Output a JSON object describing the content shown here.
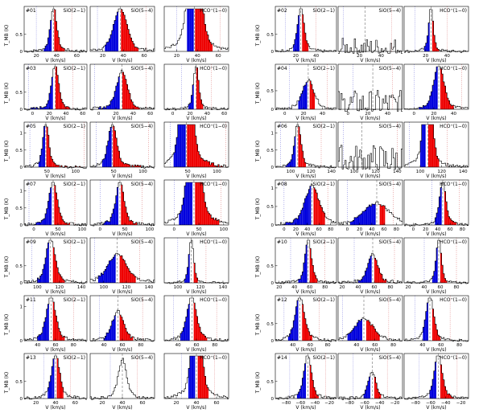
{
  "chart_data": {
    "type": "histogram-grid",
    "ylabel": "T_MB (K)",
    "xlabel": "V (km/s)",
    "lines": [
      "SiO(2−1)",
      "SiO(5−4)",
      "HCO⁺(1−0)"
    ],
    "colors": {
      "blue_wing": "#0000dd",
      "red_wing": "#ee0000",
      "outline": "#000000",
      "center_line": "#555555",
      "blue_limit": "#3333cc",
      "red_limit": "#cc3333"
    },
    "sources": [
      {
        "id": "#01",
        "x_ticks": [
          "20",
          "40",
          "60"
        ],
        "xlim": [
          8,
          70
        ],
        "center": 37,
        "y_ticks": [
          "0",
          "0.5"
        ],
        "lines": [
          {
            "label": "SiO(2−1)",
            "blue": [
              27,
              35
            ],
            "red": [
              38,
              48
            ],
            "peak": 1.0,
            "width": 3,
            "outer": [
              20,
              55
            ]
          },
          {
            "label": "SiO(5−4)",
            "blue": [
              22,
              35
            ],
            "red": [
              38,
              55
            ],
            "peak": 0.9,
            "width": 6,
            "outer": [
              15,
              62
            ]
          },
          {
            "label": "HCO⁺(1−0)",
            "blue": [
              30,
              36
            ],
            "red": [
              38,
              55
            ],
            "peak": 3.0,
            "width": 5,
            "outer": [
              20,
              62
            ]
          }
        ]
      },
      {
        "id": "#02",
        "x_ticks": [
          "20",
          "40"
        ],
        "xlim": [
          0,
          60
        ],
        "center": 25,
        "y_ticks": [
          "0",
          "0.5"
        ],
        "lines": [
          {
            "label": "SiO(2−1)",
            "blue": [
              17,
              24
            ],
            "red": [
              26,
              32
            ],
            "peak": 1.0,
            "width": 3,
            "outer": [
              10,
              40
            ]
          },
          {
            "label": "SiO(5−4)",
            "blue": null,
            "red": null,
            "peak": 0.35,
            "width": 30,
            "noise": true,
            "outer": [
              5,
              50
            ]
          },
          {
            "label": "HCO⁺(1−0)",
            "blue": [
              19,
              24
            ],
            "red": [
              26,
              33
            ],
            "peak": 1.0,
            "width": 2,
            "outer": [
              10,
              40
            ]
          }
        ]
      },
      {
        "id": "#03",
        "x_ticks": [
          "0",
          "20",
          "40",
          "60"
        ],
        "xlim": [
          -10,
          65
        ],
        "center": 27,
        "y_ticks": [
          "0",
          "0.5"
        ],
        "lines": [
          {
            "label": "SiO(2−1)",
            "blue": [
              -5,
              25
            ],
            "red": [
              28,
              45
            ],
            "peak": 1.0,
            "width": 4,
            "outer": [
              -5,
              48
            ]
          },
          {
            "label": "SiO(5−4)",
            "blue": [
              0,
              25
            ],
            "red": [
              28,
              48
            ],
            "peak": 0.8,
            "width": 6,
            "outer": [
              -5,
              55
            ]
          },
          {
            "label": "HCO⁺(1−0)",
            "blue": [
              18,
              25
            ],
            "red": [
              28,
              36
            ],
            "peak": 1.0,
            "width": 3,
            "outer": [
              10,
              45
            ]
          }
        ]
      },
      {
        "id": "#04",
        "x_ticks": [
          "0",
          "20",
          "40"
        ],
        "xlim": [
          -10,
          55
        ],
        "center": 25,
        "y_ticks": [
          "0",
          "0.5"
        ],
        "lines": [
          {
            "label": "SiO(2−1)",
            "blue": [
              15,
              24
            ],
            "red": [
              26,
              32
            ],
            "peak": 0.6,
            "width": 6,
            "outer": [
              5,
              45
            ]
          },
          {
            "label": "SiO(5−4)",
            "blue": null,
            "red": null,
            "peak": 0.5,
            "width": 30,
            "noise": true,
            "outer": [
              5,
              45
            ]
          },
          {
            "label": "HCO⁺(1−0)",
            "blue": [
              5,
              24
            ],
            "red": [
              26,
              40
            ],
            "peak": 1.0,
            "width": 5,
            "outer": [
              0,
              48
            ]
          }
        ]
      },
      {
        "id": "#05",
        "x_ticks": [
          "50",
          "100"
        ],
        "xlim": [
          10,
          120
        ],
        "center": 48,
        "y_ticks": [
          "0",
          "0.5",
          "1"
        ],
        "lines": [
          {
            "label": "SiO(2−1)",
            "blue": [
              35,
              46
            ],
            "red": [
              49,
              110
            ],
            "peak": 1.0,
            "width": 5,
            "outer": [
              20,
              115
            ]
          },
          {
            "label": "SiO(5−4)",
            "blue": [
              30,
              46
            ],
            "red": [
              49,
              100
            ],
            "peak": 0.9,
            "width": 7,
            "outer": [
              20,
              110
            ]
          },
          {
            "label": "HCO⁺(1−0)",
            "blue": [
              25,
              46
            ],
            "red": [
              49,
              110
            ],
            "peak": 3.0,
            "width": 8,
            "outer": [
              20,
              115
            ]
          }
        ]
      },
      {
        "id": "#06",
        "x_ticks": [
          "100",
          "120",
          "140"
        ],
        "xlim": [
          85,
          145
        ],
        "center": 107,
        "y_ticks": [
          "0",
          "0.5",
          "1"
        ],
        "lines": [
          {
            "label": "SiO(2−1)",
            "blue": [
              95,
              105
            ],
            "red": [
              108,
              115
            ],
            "peak": 1.0,
            "width": 3,
            "outer": [
              90,
              130
            ]
          },
          {
            "label": "SiO(5−4)",
            "blue": null,
            "red": null,
            "peak": 0.6,
            "width": 30,
            "noise": true,
            "outer": [
              90,
              140
            ]
          },
          {
            "label": "HCO⁺(1−0)",
            "blue": [
              100,
              105
            ],
            "red": [
              108,
              118
            ],
            "peak": 3.0,
            "width": 3,
            "outer": [
              90,
              125
            ]
          }
        ]
      },
      {
        "id": "#07",
        "x_ticks": [
          "0",
          "50",
          "100"
        ],
        "xlim": [
          -20,
          110
        ],
        "center": 40,
        "y_ticks": [
          "0",
          "0.5",
          "1"
        ],
        "lines": [
          {
            "label": "SiO(2−1)",
            "blue": [
              -5,
              38
            ],
            "red": [
              42,
              75
            ],
            "peak": 1.0,
            "width": 8,
            "outer": [
              -10,
              85
            ]
          },
          {
            "label": "SiO(5−4)",
            "blue": [
              5,
              38
            ],
            "red": [
              42,
              75
            ],
            "peak": 0.9,
            "width": 8,
            "outer": [
              0,
              85
            ]
          },
          {
            "label": "HCO⁺(1−0)",
            "blue": [
              10,
              38
            ],
            "red": [
              42,
              90
            ],
            "peak": 3.0,
            "width": 10,
            "outer": [
              0,
              95
            ]
          }
        ]
      },
      {
        "id": "#08",
        "x_ticks": [
          "0",
          "20",
          "40",
          "60",
          "80"
        ],
        "xlim": [
          -15,
          90
        ],
        "center": 48,
        "y_ticks": [
          "0",
          "0.5",
          "1"
        ],
        "lines": [
          {
            "label": "SiO(2−1)",
            "blue": [
              0,
              46
            ],
            "red": [
              50,
              70
            ],
            "peak": 0.8,
            "width": 12,
            "outer": [
              0,
              75
            ]
          },
          {
            "label": "SiO(5−4)",
            "blue": [
              5,
              46
            ],
            "red": [
              52,
              62
            ],
            "peak": 0.45,
            "width": 20,
            "outer": [
              0,
              75
            ]
          },
          {
            "label": "HCO⁺(1−0)",
            "blue": [
              35,
              46
            ],
            "red": [
              50,
              70
            ],
            "peak": 1.2,
            "width": 5,
            "outer": [
              30,
              75
            ]
          }
        ]
      },
      {
        "id": "#09",
        "x_ticks": [
          "100",
          "120",
          "140"
        ],
        "xlim": [
          88,
          145
        ],
        "center": 112,
        "y_ticks": [
          "0",
          "0.5"
        ],
        "lines": [
          {
            "label": "SiO(2−1)",
            "blue": [
              100,
              110
            ],
            "red": [
              114,
              125
            ],
            "peak": 1.0,
            "width": 4,
            "outer": [
              95,
              130
            ]
          },
          {
            "label": "SiO(5−4)",
            "blue": [
              95,
              110
            ],
            "red": [
              114,
              128
            ],
            "peak": 0.6,
            "width": 8,
            "outer": [
              92,
              132
            ]
          },
          {
            "label": "HCO⁺(1−0)",
            "blue": [
              106,
              110
            ],
            "red": [
              114,
              118
            ],
            "peak": 1.2,
            "width": 2,
            "outer": [
              100,
              125
            ]
          }
        ]
      },
      {
        "id": "#10",
        "x_ticks": [
          "20",
          "40",
          "60",
          "80"
        ],
        "xlim": [
          15,
          95
        ],
        "center": 58,
        "y_ticks": [
          "0",
          "0.5"
        ],
        "lines": [
          {
            "label": "SiO(2−1)",
            "blue": [
              45,
              56
            ],
            "red": [
              60,
              70
            ],
            "peak": 1.0,
            "width": 4,
            "outer": [
              35,
              80
            ]
          },
          {
            "label": "SiO(5−4)",
            "blue": [
              40,
              56
            ],
            "red": [
              60,
              75
            ],
            "peak": 0.6,
            "width": 6,
            "outer": [
              35,
              85
            ]
          },
          {
            "label": "HCO⁺(1−0)",
            "blue": [
              50,
              56
            ],
            "red": [
              60,
              68
            ],
            "peak": 1.4,
            "width": 3,
            "outer": [
              40,
              80
            ]
          }
        ]
      },
      {
        "id": "#11",
        "x_ticks": [
          "40",
          "60",
          "80"
        ],
        "xlim": [
          25,
          95
        ],
        "center": 55,
        "y_ticks": [
          "0",
          "1"
        ],
        "lines": [
          {
            "label": "SiO(2−1)",
            "blue": [
              40,
              53
            ],
            "red": [
              57,
              70
            ],
            "peak": 1.0,
            "width": 5,
            "outer": [
              35,
              80
            ]
          },
          {
            "label": "SiO(5−4)",
            "blue": [
              40,
              53
            ],
            "red": [
              57,
              72
            ],
            "peak": 0.6,
            "width": 6,
            "outer": [
              35,
              82
            ]
          },
          {
            "label": "HCO⁺(1−0)",
            "blue": [
              42,
              53
            ],
            "red": [
              57,
              72
            ],
            "peak": 1.0,
            "width": 5,
            "outer": [
              35,
              82
            ]
          }
        ]
      },
      {
        "id": "#12",
        "x_ticks": [
          "40",
          "60",
          "80"
        ],
        "xlim": [
          20,
          90
        ],
        "center": 48,
        "y_ticks": [
          "0",
          "0.5"
        ],
        "lines": [
          {
            "label": "SiO(2−1)",
            "blue": [
              35,
              46
            ],
            "red": [
              50,
              62
            ],
            "peak": 1.0,
            "width": 5,
            "outer": [
              30,
              70
            ]
          },
          {
            "label": "SiO(5−4)",
            "blue": [
              30,
              46
            ],
            "red": [
              50,
              65
            ],
            "peak": 0.45,
            "width": 10,
            "outer": [
              25,
              75
            ]
          },
          {
            "label": "HCO⁺(1−0)",
            "blue": [
              40,
              46
            ],
            "red": [
              50,
              60
            ],
            "peak": 1.2,
            "width": 4,
            "outer": [
              32,
              70
            ]
          }
        ]
      },
      {
        "id": "#13",
        "x_ticks": [
          "20",
          "40",
          "60"
        ],
        "xlim": [
          8,
          72
        ],
        "center": 40,
        "y_ticks": [
          "0",
          "0.5"
        ],
        "lines": [
          {
            "label": "SiO(2−1)",
            "blue": [
              32,
              38
            ],
            "red": [
              42,
              48
            ],
            "peak": 1.0,
            "width": 4,
            "outer": [
              28,
              55
            ]
          },
          {
            "label": "SiO(5−4)",
            "blue": null,
            "red": null,
            "peak": 0.8,
            "width": 4,
            "noise": false,
            "outer": [
              28,
              55
            ]
          },
          {
            "label": "HCO⁺(1−0)",
            "blue": [
              32,
              38
            ],
            "red": [
              42,
              52
            ],
            "peak": 2.5,
            "width": 4,
            "outer": [
              25,
              58
            ]
          }
        ]
      },
      {
        "id": "#14",
        "x_ticks": [
          "−80",
          "−60",
          "−40",
          "−20"
        ],
        "xlim": [
          -95,
          -10
        ],
        "center": -50,
        "y_ticks": [
          "0",
          "0.5"
        ],
        "lines": [
          {
            "label": "SiO(2−1)",
            "blue": [
              -65,
              -52
            ],
            "red": [
              -48,
              -35
            ],
            "peak": 1.0,
            "width": 5,
            "outer": [
              -75,
              -25
            ]
          },
          {
            "label": "SiO(5−4)",
            "blue": [
              -62,
              -52
            ],
            "red": [
              -48,
              -38
            ],
            "peak": 0.55,
            "width": 5,
            "outer": [
              -75,
              -30
            ]
          },
          {
            "label": "HCO⁺(1−0)",
            "blue": [
              -62,
              -52
            ],
            "red": [
              -48,
              -30
            ],
            "peak": 1.3,
            "width": 5,
            "outer": [
              -75,
              -25
            ]
          }
        ]
      }
    ]
  }
}
